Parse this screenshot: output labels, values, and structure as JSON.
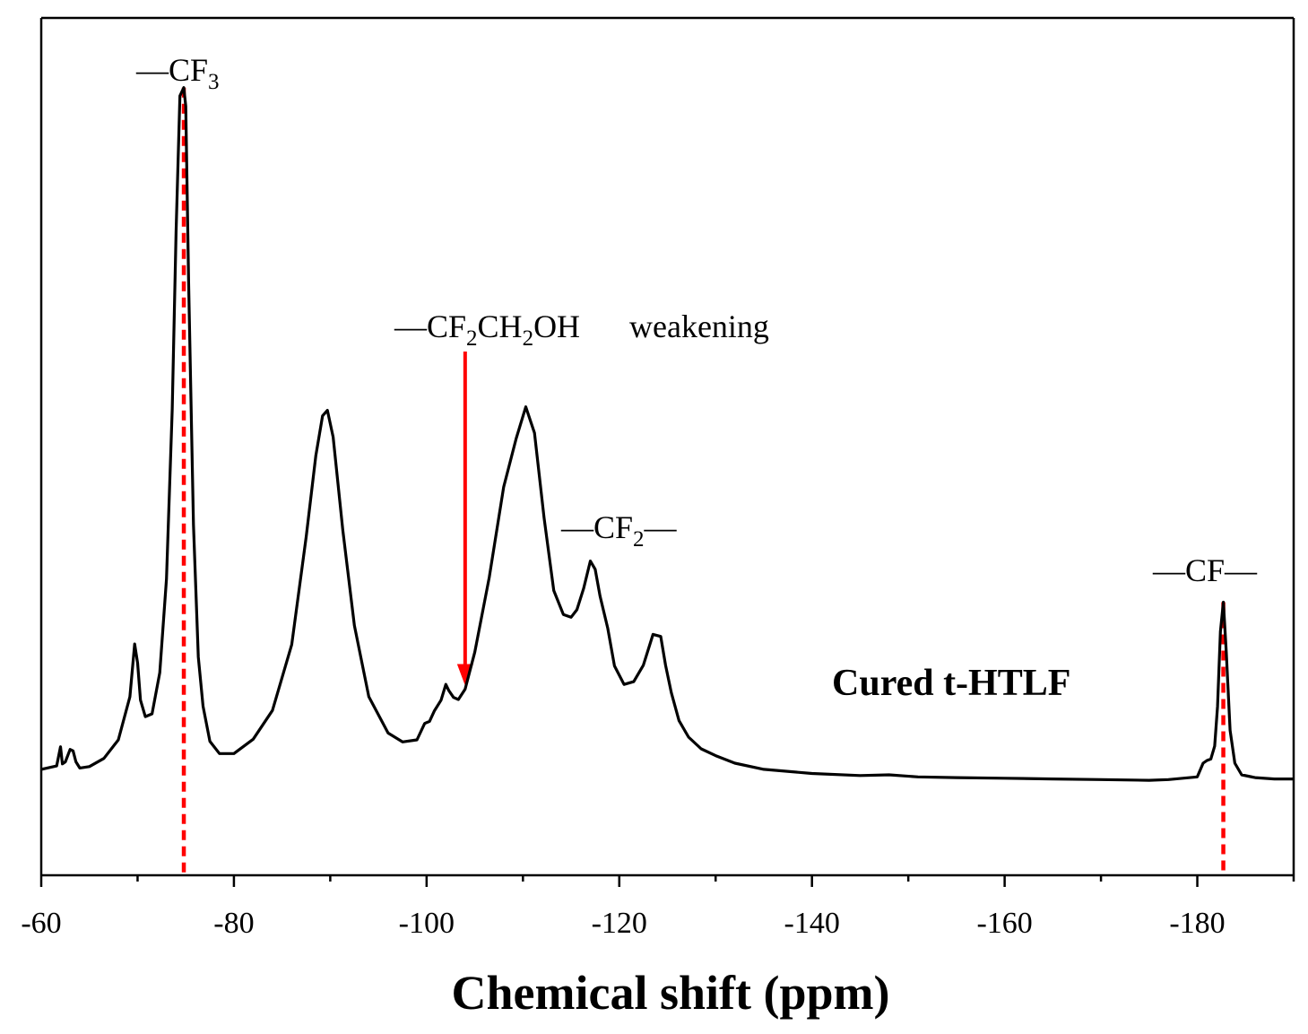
{
  "chart_data": {
    "type": "line",
    "xlabel": "Chemical shift (ppm)",
    "ylabel": "",
    "xlim": [
      -60,
      -190
    ],
    "x_reversed": true,
    "y_ticks": false,
    "xticks": [
      -60,
      -80,
      -100,
      -120,
      -140,
      -160,
      -180
    ],
    "xtick_labels": [
      "-60",
      "-80",
      "-100",
      "-120",
      "-140",
      "-160",
      "-180"
    ],
    "ylim": [
      0,
      110
    ],
    "colors": {
      "line": "#000000",
      "marker": "#ff0000"
    },
    "series": [
      {
        "x": [
          -60,
          -61.6,
          -62,
          -62.2,
          -62.5,
          -63,
          -63.3,
          -63.6,
          -64,
          -65,
          -66.5,
          -68,
          -69.2,
          -69.7,
          -70,
          -70.3,
          -70.8,
          -71.5,
          -72.3,
          -73.0,
          -73.6,
          -74.0,
          -74.4,
          -74.8,
          -75.0,
          -75.3,
          -75.8,
          -76.3,
          -76.8,
          -77.5,
          -78.5,
          -80,
          -82,
          -84,
          -86,
          -87.5,
          -88.5,
          -89.2,
          -89.7,
          -90.3,
          -91.3,
          -92.5,
          -94,
          -96,
          -97.5,
          -99,
          -99.8,
          -100.3,
          -100.8,
          -101.5,
          -102,
          -102.3,
          -102.8,
          -103.3,
          -104,
          -105,
          -106.5,
          -108,
          -109.3,
          -110.3,
          -111.2,
          -112.2,
          -113.2,
          -114.2,
          -115,
          -115.6,
          -116.3,
          -117.0,
          -117.5,
          -118,
          -118.8,
          -119.5,
          -120.5,
          -121.5,
          -122.5,
          -123.5,
          -124.3,
          -124.8,
          -125.4,
          -126.2,
          -127.2,
          -128.5,
          -130,
          -132,
          -135,
          -140,
          -145,
          -148,
          -151,
          -155,
          -160,
          -165,
          -170,
          -175,
          -177,
          -178.5,
          -180,
          -180.6,
          -181,
          -181.4,
          -181.8,
          -182.1,
          -182.4,
          -182.7,
          -183.0,
          -183.4,
          -183.9,
          -184.6,
          -186,
          -188,
          -190
        ],
        "y": [
          0.8,
          1.3,
          4.1,
          1.6,
          1.9,
          3.7,
          3.5,
          1.9,
          1.0,
          1.2,
          2.4,
          5.1,
          11.4,
          19.1,
          16.3,
          10.9,
          8.5,
          8.9,
          14.9,
          28.6,
          53.3,
          79.2,
          99.1,
          100.3,
          97.6,
          71.9,
          36.5,
          17.2,
          10.0,
          4.9,
          3.1,
          3.1,
          5.2,
          9.4,
          19.0,
          34.7,
          46.6,
          52.4,
          53.2,
          49.3,
          35.7,
          21.8,
          11.4,
          6.1,
          4.8,
          5.1,
          7.5,
          7.8,
          9.3,
          10.9,
          13.2,
          12.3,
          11.3,
          11.0,
          12.5,
          17.9,
          28.8,
          42.0,
          49.1,
          53.7,
          49.9,
          37.5,
          26.9,
          23.4,
          23.0,
          24.1,
          27.2,
          31.2,
          30.0,
          26.1,
          21.4,
          15.9,
          13.2,
          13.6,
          16.0,
          20.5,
          20.2,
          16.0,
          12.0,
          7.9,
          5.5,
          3.8,
          2.8,
          1.7,
          0.8,
          0.2,
          -0.1,
          0.0,
          -0.3,
          -0.4,
          -0.5,
          -0.6,
          -0.7,
          -0.8,
          -0.7,
          -0.5,
          -0.3,
          1.7,
          2.1,
          2.3,
          4.2,
          10.0,
          20.9,
          25.2,
          18.0,
          6.5,
          1.7,
          0.0,
          -0.4,
          -0.6,
          -0.6
        ]
      }
    ],
    "annotations": [
      {
        "id": "cf3",
        "parts": [
          {
            "t": "—CF",
            "sub": false
          },
          {
            "t": "3",
            "sub": true
          }
        ]
      },
      {
        "id": "cf2ch2oh",
        "parts": [
          {
            "t": "—CF",
            "sub": false
          },
          {
            "t": "2",
            "sub": true
          },
          {
            "t": "CH",
            "sub": false
          },
          {
            "t": "2",
            "sub": true
          },
          {
            "t": "OH",
            "sub": false
          }
        ]
      },
      {
        "id": "weakening",
        "parts": [
          {
            "t": "weakening",
            "sub": false
          }
        ]
      },
      {
        "id": "cf2",
        "parts": [
          {
            "t": "—CF",
            "sub": false
          },
          {
            "t": "2",
            "sub": true
          },
          {
            "t": "—",
            "sub": false
          }
        ]
      },
      {
        "id": "cf",
        "parts": [
          {
            "t": "—CF—",
            "sub": false
          }
        ]
      }
    ],
    "sample_label": "Cured t-HTLF",
    "markers": [
      {
        "type": "dashed-line",
        "x": -74.8
      },
      {
        "type": "arrow",
        "x": -104
      },
      {
        "type": "dashed-line",
        "x": -182.7
      }
    ]
  }
}
